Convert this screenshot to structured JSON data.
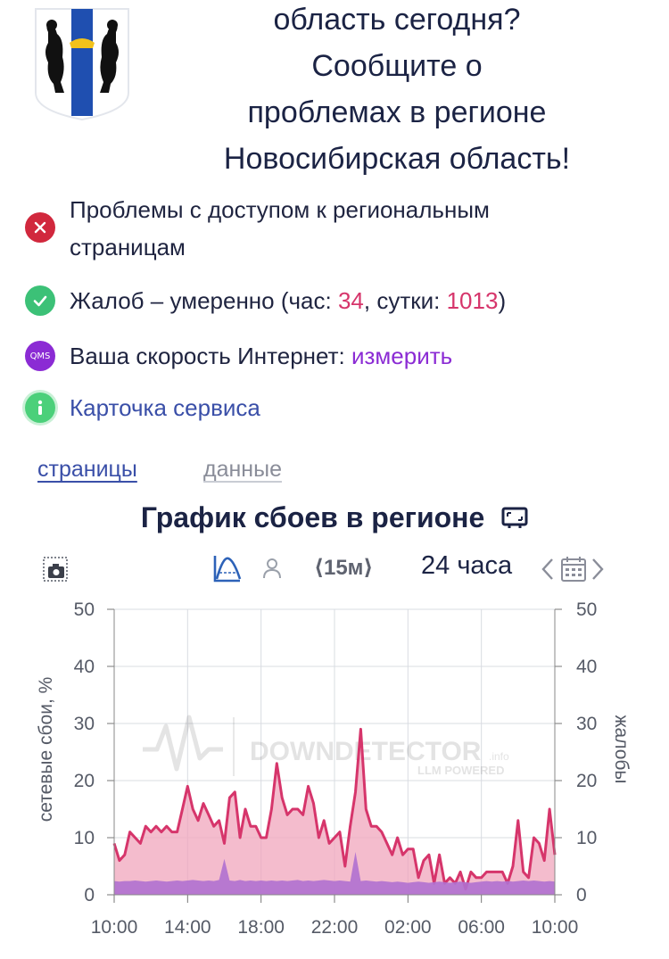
{
  "header": {
    "headline_lines": [
      "область сегодня?",
      "Сообщите о",
      "проблемах в регионе",
      "Новосибирская область!"
    ]
  },
  "status": {
    "access_problem": "Проблемы с доступом к региональным страницам",
    "complaints_prefix": "Жалоб – умеренно (час: ",
    "complaints_hour": "34",
    "complaints_mid": ", сутки: ",
    "complaints_day": "1013",
    "complaints_suffix": ")",
    "speed_prefix": "Ваша скорость Интернет: ",
    "speed_link": "измерить",
    "speed_icon_text": "QMS",
    "service_card": "Карточка сервиса"
  },
  "tabs": {
    "pages": "страницы",
    "data": "данные"
  },
  "chart_title": "График сбоев в регионе",
  "toolbar": {
    "interval": "⟨15м⟩",
    "period": "24 часа"
  },
  "icons": {
    "coat": "novosibirsk-coat-of-arms-icon",
    "error": "error-icon",
    "ok": "check-icon",
    "qms": "qms-icon",
    "info": "info-icon",
    "screen": "fullscreen-icon",
    "camera": "camera-icon",
    "curve": "chart-mode-icon",
    "user": "user-icon",
    "calendar": "calendar-icon"
  },
  "colors": {
    "complaints_line": "#d6356b",
    "complaints_fill": "#f0a6bc",
    "outages_fill": "#b070d0",
    "error": "#d1283d",
    "ok": "#3cc177",
    "qms": "#8b2bd4",
    "info": "#4bd07a"
  },
  "watermark": {
    "brand": "DOWNDETECTOR",
    "suffix": ".info",
    "sub": "LLM POWERED"
  },
  "chart_data": {
    "type": "area",
    "ylabel": "сетевые сбои, %",
    "y2label": "жалобы",
    "ylim": [
      0,
      50
    ],
    "yticks": [
      0,
      10,
      20,
      30,
      40,
      50
    ],
    "xlim": [
      0,
      24
    ],
    "xticks": [
      0,
      4,
      8,
      12,
      16,
      20,
      24
    ],
    "xtick_labels": [
      "10:00",
      "14:00",
      "18:00",
      "22:00",
      "02:00",
      "06:00",
      "10:00"
    ],
    "grid": true,
    "series": [
      {
        "values": [
          9,
          6,
          7,
          11,
          10,
          9,
          12,
          11,
          12,
          11,
          12,
          11,
          11,
          15,
          19,
          15,
          13,
          16,
          14,
          12,
          13,
          9,
          17,
          18,
          10,
          15,
          12,
          12,
          10,
          10,
          15,
          23,
          17,
          14,
          15,
          15,
          14,
          19,
          16,
          10,
          13,
          9,
          10,
          11,
          5,
          12,
          18,
          29,
          15,
          12,
          12,
          11,
          9,
          7,
          10,
          7,
          8,
          8,
          3,
          6,
          7,
          2,
          7,
          2,
          3,
          2,
          4,
          1,
          4,
          3,
          3,
          4,
          4,
          4,
          4,
          2,
          5,
          13,
          4,
          3,
          10,
          9,
          6,
          15,
          7
        ]
      },
      {
        "values": [
          2.4,
          2.3,
          2.4,
          2.4,
          2.5,
          2.4,
          2.3,
          2.4,
          2.5,
          2.4,
          2.3,
          2.4,
          2.5,
          2.4,
          2.5,
          2.6,
          2.5,
          2.4,
          2.5,
          2.4,
          2.6,
          6.3,
          2.5,
          2.4,
          2.6,
          2.4,
          2.5,
          2.4,
          2.5,
          2.4,
          2.5,
          2.4,
          2.5,
          2.4,
          2.5,
          2.6,
          2.4,
          2.5,
          2.4,
          2.5,
          2.6,
          2.5,
          2.4,
          2.5,
          2.4,
          2.3,
          7.5,
          2.4,
          2.5,
          2.4,
          2.3,
          2.4,
          2.3,
          2.2,
          2.3,
          2.2,
          2.1,
          2.2,
          2.3,
          2.2,
          2.1,
          2.2,
          2.3,
          2.2,
          2.1,
          2.2,
          2.3,
          2.2,
          2.1,
          2.2,
          2.3,
          2.4,
          2.3,
          2.4,
          2.3,
          2.4,
          2.3,
          2.4,
          2.5,
          2.4,
          2.5,
          2.4,
          2.3,
          2.4,
          2.3
        ]
      }
    ]
  }
}
